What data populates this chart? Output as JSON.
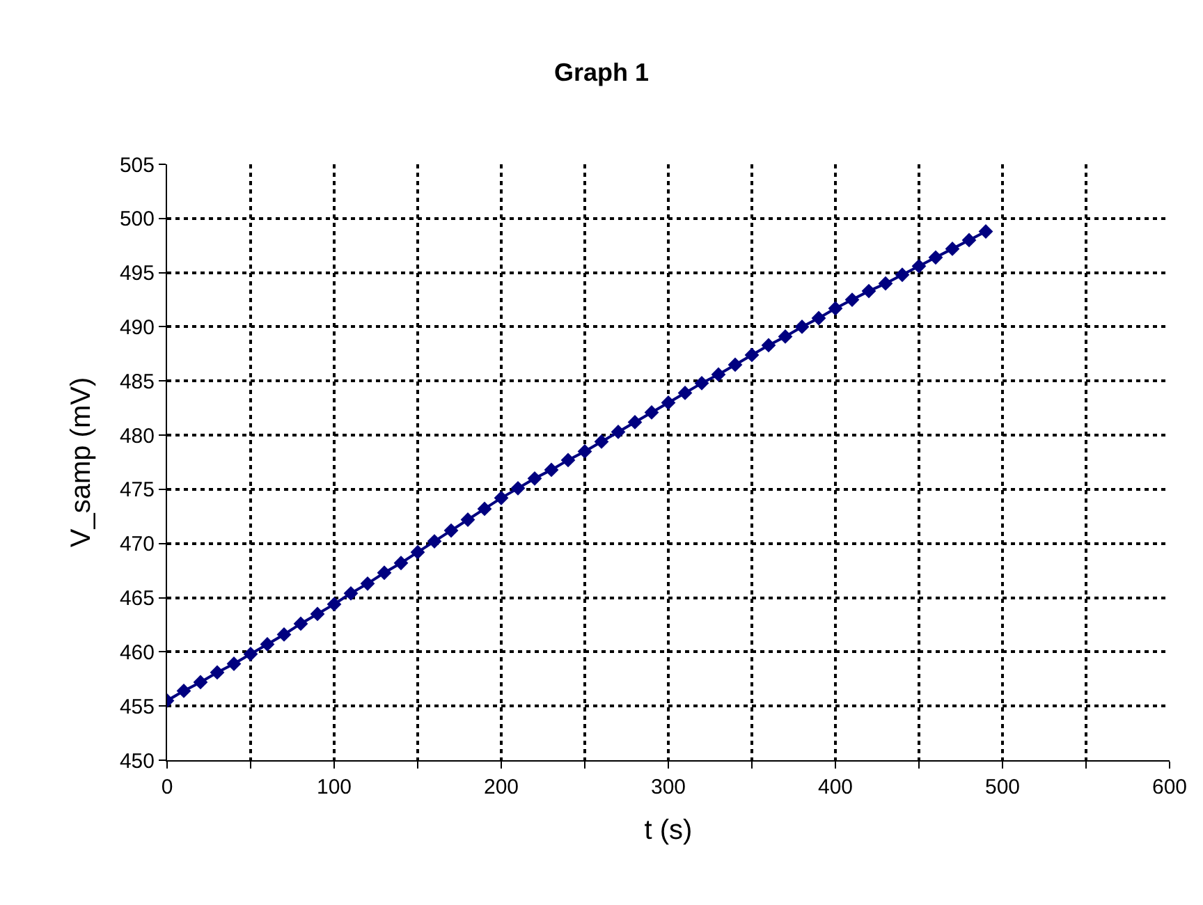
{
  "chart_data": {
    "type": "line",
    "title": "Graph 1",
    "xlabel": "t (s)",
    "ylabel": "V_samp (mV)",
    "x": [
      0,
      10,
      20,
      30,
      40,
      50,
      60,
      70,
      80,
      90,
      100,
      110,
      120,
      130,
      140,
      150,
      160,
      170,
      180,
      190,
      200,
      210,
      220,
      230,
      240,
      250,
      260,
      270,
      280,
      290,
      300,
      310,
      320,
      330,
      340,
      350,
      360,
      370,
      380,
      390,
      400,
      410,
      420,
      430,
      440,
      450,
      460,
      470,
      480,
      490
    ],
    "series": [
      {
        "color": "#000080",
        "values": [
          455.5,
          456.4,
          457.2,
          458.1,
          458.9,
          459.8,
          460.7,
          461.6,
          462.6,
          463.5,
          464.4,
          465.4,
          466.3,
          467.3,
          468.2,
          469.2,
          470.2,
          471.2,
          472.2,
          473.2,
          474.2,
          475.1,
          476.0,
          476.8,
          477.7,
          478.5,
          479.4,
          480.3,
          481.2,
          482.1,
          483.0,
          483.9,
          484.8,
          485.6,
          486.5,
          487.4,
          488.3,
          489.1,
          490.0,
          490.8,
          491.7,
          492.5,
          493.3,
          494.0,
          494.8,
          495.6,
          496.4,
          497.2,
          498.0,
          498.8
        ]
      }
    ],
    "xlim": [
      0,
      600
    ],
    "xticks": [
      0,
      {
        "value": 50,
        "label": null
      },
      100,
      {
        "value": 150,
        "label": null
      },
      200,
      {
        "value": 250,
        "label": null
      },
      300,
      {
        "value": 350,
        "label": null
      },
      400,
      {
        "value": 450,
        "label": null
      },
      500,
      {
        "value": 550,
        "label": null
      },
      600
    ],
    "ylim": [
      450,
      505
    ],
    "yticks": [
      450,
      455,
      460,
      465,
      470,
      475,
      480,
      485,
      490,
      495,
      500,
      505
    ],
    "grid": true,
    "legend": false,
    "marker": "diamond",
    "line_style": "solid"
  }
}
